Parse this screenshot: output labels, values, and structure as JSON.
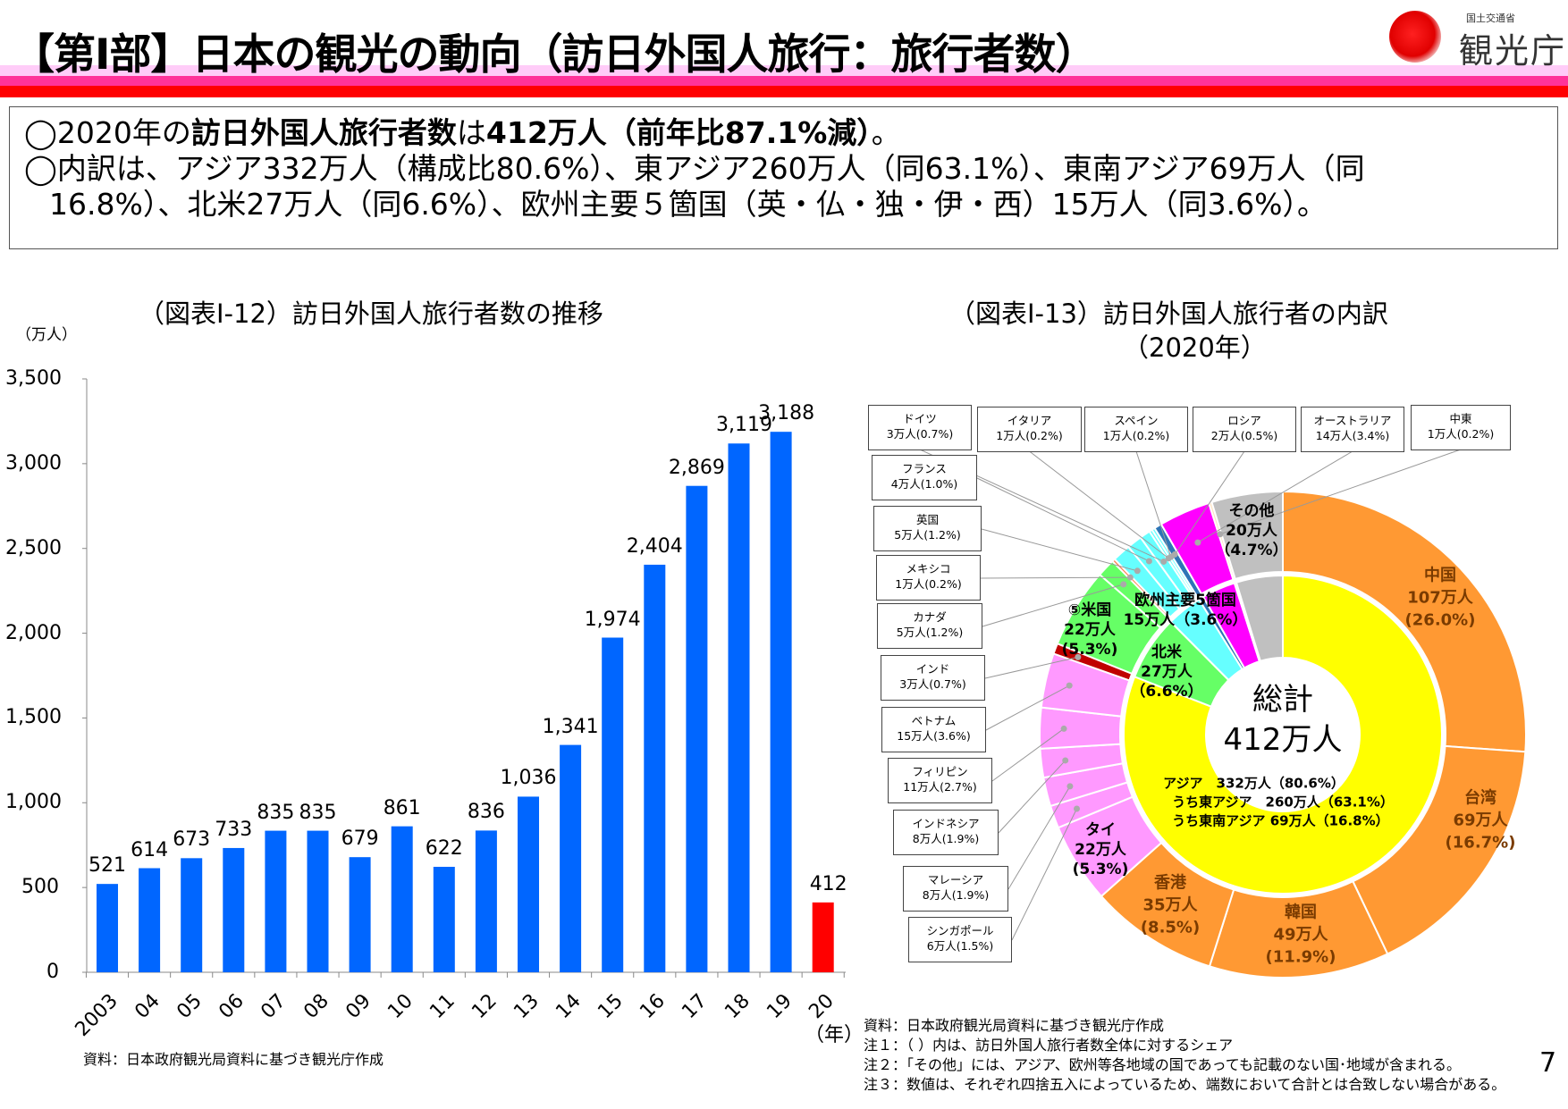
{
  "header": {
    "title": "【第Ⅰ部】日本の観光の動向（訪日外国人旅行：旅行者数）",
    "logo": {
      "small_text": "国土交通省",
      "name": "観光庁"
    },
    "colors": {
      "band_light": "#ffccf8",
      "band_mid": "#ff3399",
      "band_red": "#ff0000"
    }
  },
  "summary": {
    "line1_prefix": "◯2020年の",
    "line1_bold": "訪日外国人旅行者数",
    "line1_mid": "は",
    "line1_bold2": "412万人（前年比87.1%減）",
    "line1_end": "。",
    "line2": "◯内訳は、アジア332万人（構成比80.6%）、東アジア260万人（同63.1%）、東南アジア69万人（同",
    "line3": "16.8%）、北米27万人（同6.6%）、欧州主要５箇国（英・仏・独・伊・西）15万人（同3.6%）。"
  },
  "chart_data": [
    {
      "type": "bar",
      "title": "（図表Ⅰ-12）訪日外国人旅行者数の推移",
      "ylabel": "（万人）",
      "xlabel": "（年）",
      "ylim": [
        0,
        3500
      ],
      "yticks": [
        "0",
        "500",
        "1,000",
        "1,500",
        "2,000",
        "2,500",
        "3,000",
        "3,500"
      ],
      "categories": [
        "2003",
        "04",
        "05",
        "06",
        "07",
        "08",
        "09",
        "10",
        "11",
        "12",
        "13",
        "14",
        "15",
        "16",
        "17",
        "18",
        "19",
        "20"
      ],
      "values": [
        521,
        614,
        673,
        733,
        835,
        835,
        679,
        861,
        622,
        836,
        1036,
        1341,
        1974,
        2404,
        2869,
        3119,
        3188,
        412
      ],
      "value_labels": [
        "521",
        "614",
        "673",
        "733",
        "835",
        "835",
        "679",
        "861",
        "622",
        "836",
        "1,036",
        "1,341",
        "1,974",
        "2,404",
        "2,869",
        "3,119",
        "3,188",
        "412"
      ],
      "colors": {
        "default": "#0066ff",
        "highlight": "#ff0000"
      },
      "source": "資料：日本政府観光局資料に基づき観光庁作成"
    },
    {
      "type": "pie",
      "title": "（図表Ⅰ-13）訪日外国人旅行者の内訳",
      "subtitle": "（2020年）",
      "center_label": "総計",
      "center_value": "412万人",
      "unit": "万人 / %",
      "inner_ring": [
        {
          "name": "アジア",
          "pct": 80.6,
          "color": "#ffff00"
        },
        {
          "name": "北米",
          "pct": 6.6,
          "color": "#66ff66"
        },
        {
          "name": "欧州主要5箇国",
          "pct": 3.6,
          "color": "#66ffff"
        },
        {
          "name": "ロシア",
          "pct": 0.5,
          "color": "#2e75b6"
        },
        {
          "name": "オーストラリア",
          "pct": 3.4,
          "color": "#ff00ff"
        },
        {
          "name": "中東",
          "pct": 0.2,
          "color": "#ffe4c4"
        },
        {
          "name": "その他",
          "pct": 4.7,
          "color": "#c0c0c0"
        }
      ],
      "outer_ring": [
        {
          "name": "中国",
          "value": 107,
          "pct": 26.0,
          "color": "#ff9933"
        },
        {
          "name": "台湾",
          "value": 69,
          "pct": 16.7,
          "color": "#ff9933"
        },
        {
          "name": "韓国",
          "value": 49,
          "pct": 11.9,
          "color": "#ff9933"
        },
        {
          "name": "香港",
          "value": 35,
          "pct": 8.5,
          "color": "#ff9933"
        },
        {
          "name": "タイ",
          "value": 22,
          "pct": 5.3,
          "color": "#ff99ff"
        },
        {
          "name": "シンガポール",
          "value": 6,
          "pct": 1.5,
          "color": "#ff99ff"
        },
        {
          "name": "マレーシア",
          "value": 8,
          "pct": 1.9,
          "color": "#ff99ff"
        },
        {
          "name": "インドネシア",
          "value": 8,
          "pct": 1.9,
          "color": "#ff99ff"
        },
        {
          "name": "フィリピン",
          "value": 11,
          "pct": 2.7,
          "color": "#ff99ff"
        },
        {
          "name": "ベトナム",
          "value": 15,
          "pct": 3.6,
          "color": "#ff99ff"
        },
        {
          "name": "インド",
          "value": 3,
          "pct": 0.7,
          "color": "#c00000"
        },
        {
          "name": "米国",
          "value": 22,
          "pct": 5.3,
          "color": "#66ff66"
        },
        {
          "name": "カナダ",
          "value": 5,
          "pct": 1.2,
          "color": "#66ff66"
        },
        {
          "name": "メキシコ",
          "value": 1,
          "pct": 0.2,
          "color": "#ff7f50"
        },
        {
          "name": "英国",
          "value": 5,
          "pct": 1.2,
          "color": "#66ffff"
        },
        {
          "name": "フランス",
          "value": 4,
          "pct": 1.0,
          "color": "#66ffff"
        },
        {
          "name": "ドイツ",
          "value": 3,
          "pct": 0.7,
          "color": "#66ffff"
        },
        {
          "name": "イタリア",
          "value": 1,
          "pct": 0.2,
          "color": "#66ffff"
        },
        {
          "name": "スペイン",
          "value": 1,
          "pct": 0.2,
          "color": "#66ffff"
        },
        {
          "name": "ロシア",
          "value": 2,
          "pct": 0.5,
          "color": "#2e75b6"
        },
        {
          "name": "オーストラリア",
          "value": 14,
          "pct": 3.4,
          "color": "#ff00ff"
        },
        {
          "name": "中東",
          "value": 1,
          "pct": 0.2,
          "color": "#ffe4c4"
        },
        {
          "name": "その他",
          "value": 20,
          "pct": 4.7,
          "color": "#c0c0c0"
        }
      ],
      "callouts": [
        {
          "name": "ドイツ",
          "text": "3万人(0.7%)"
        },
        {
          "name": "イタリア",
          "text": "1万人(0.2%)"
        },
        {
          "name": "スペイン",
          "text": "1万人(0.2%)"
        },
        {
          "name": "ロシア",
          "text": "2万人(0.5%)"
        },
        {
          "name": "オーストラリア",
          "text": "14万人(3.4%)"
        },
        {
          "name": "中東",
          "text": "1万人(0.2%)"
        },
        {
          "name": "フランス",
          "text": "4万人(1.0%)"
        },
        {
          "name": "英国",
          "text": "5万人(1.2%)"
        },
        {
          "name": "メキシコ",
          "text": "1万人(0.2%)"
        },
        {
          "name": "カナダ",
          "text": "5万人(1.2%)"
        },
        {
          "name": "インド",
          "text": "3万人(0.7%)"
        },
        {
          "name": "ベトナム",
          "text": "15万人(3.6%)"
        },
        {
          "name": "フィリピン",
          "text": "11万人(2.7%)"
        },
        {
          "name": "インドネシア",
          "text": "8万人(1.9%)"
        },
        {
          "name": "マレーシア",
          "text": "8万人(1.9%)"
        },
        {
          "name": "シンガポール",
          "text": "6万人(1.5%)"
        }
      ],
      "slice_labels": [
        {
          "name": "中国",
          "value": "107万人",
          "pct": "(26.0%)"
        },
        {
          "name": "台湾",
          "value": "69万人",
          "pct": "(16.7%)"
        },
        {
          "name": "韓国",
          "value": "49万人",
          "pct": "(11.9%)"
        },
        {
          "name": "香港",
          "value": "35万人",
          "pct": "(8.5%)"
        },
        {
          "name": "タイ",
          "value": "22万人",
          "pct": "(5.3%)"
        },
        {
          "name": "⑤米国",
          "value": "22万人",
          "pct": "(5.3%)"
        },
        {
          "name": "北米",
          "value": "27万人",
          "pct": "（6.6%）"
        },
        {
          "name": "欧州主要5箇国",
          "value": "15万人（3.6%）",
          "pct": ""
        },
        {
          "name": "その他",
          "value": "20万人",
          "pct": "（4.7%）"
        }
      ],
      "asia_block": [
        "アジア　332万人（80.6%）",
        "うち東アジア　260万人（63.1%）",
        "うち東南アジア 69万人（16.8%）"
      ],
      "notes": [
        "資料：日本政府観光局資料に基づき観光庁作成",
        "注１：（ ）内は、訪日外国人旅行者数全体に対するシェア",
        "注２：「その他」には、アジア、欧州等各地域の国であっても記載のない国･地域が含まれる。",
        "注３：数値は、それぞれ四捨五入によっているため、端数において合計とは合致しない場合がある。"
      ]
    }
  ],
  "page_number": "7"
}
